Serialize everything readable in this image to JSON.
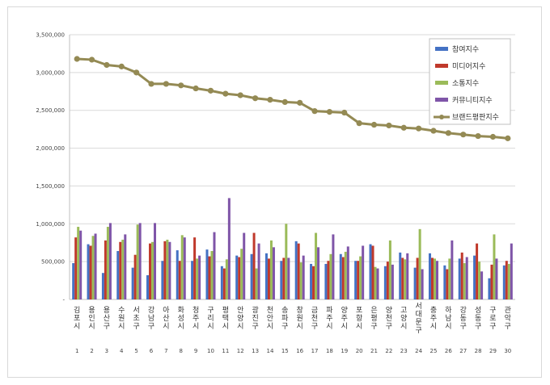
{
  "chart_data": {
    "type": "bar",
    "categories": [
      "김포시",
      "용인시",
      "용산구",
      "수원시",
      "서초구",
      "강남구",
      "아산시",
      "화성시",
      "청주시",
      "구리시",
      "평택시",
      "안양시",
      "광진구",
      "천안시",
      "송파구",
      "창원시",
      "금천구",
      "파주시",
      "양주시",
      "포항시",
      "은평구",
      "양천구",
      "고양시",
      "서대문구",
      "충주시",
      "하남시",
      "강동구",
      "성동구",
      "구로구",
      "관악구"
    ],
    "ranks": [
      "1",
      "2",
      "3",
      "4",
      "5",
      "6",
      "7",
      "8",
      "9",
      "10",
      "11",
      "12",
      "13",
      "14",
      "15",
      "16",
      "17",
      "18",
      "19",
      "20",
      "21",
      "22",
      "23",
      "24",
      "25",
      "26",
      "27",
      "28",
      "29",
      "30"
    ],
    "series": [
      {
        "name": "참여지수",
        "color": "#4472C4",
        "values": [
          480000,
          730000,
          350000,
          640000,
          420000,
          320000,
          510000,
          650000,
          510000,
          660000,
          440000,
          580000,
          600000,
          610000,
          510000,
          770000,
          470000,
          470000,
          600000,
          510000,
          730000,
          440000,
          620000,
          420000,
          610000,
          450000,
          540000,
          580000,
          280000,
          450000
        ]
      },
      {
        "name": "미디어지수",
        "color": "#C0392B",
        "values": [
          820000,
          710000,
          780000,
          760000,
          590000,
          740000,
          770000,
          510000,
          820000,
          570000,
          410000,
          560000,
          880000,
          540000,
          550000,
          740000,
          440000,
          510000,
          560000,
          510000,
          710000,
          500000,
          550000,
          550000,
          550000,
          400000,
          620000,
          740000,
          460000,
          510000
        ]
      },
      {
        "name": "소통지수",
        "color": "#9BBB59",
        "values": [
          960000,
          840000,
          960000,
          790000,
          990000,
          760000,
          790000,
          850000,
          540000,
          640000,
          530000,
          670000,
          410000,
          780000,
          1000000,
          490000,
          880000,
          600000,
          630000,
          570000,
          430000,
          780000,
          530000,
          930000,
          540000,
          540000,
          480000,
          500000,
          860000,
          470000
        ]
      },
      {
        "name": "커뮤니티지수",
        "color": "#7F55A8",
        "values": [
          910000,
          870000,
          1010000,
          860000,
          1010000,
          1010000,
          760000,
          820000,
          580000,
          890000,
          1340000,
          880000,
          740000,
          690000,
          550000,
          580000,
          690000,
          860000,
          700000,
          710000,
          410000,
          460000,
          610000,
          400000,
          510000,
          780000,
          560000,
          370000,
          540000,
          740000
        ]
      }
    ],
    "line": {
      "name": "브랜드평판지수",
      "color": "#948A54",
      "values": [
        3180000,
        3170000,
        3100000,
        3080000,
        3000000,
        2850000,
        2850000,
        2830000,
        2790000,
        2760000,
        2720000,
        2700000,
        2660000,
        2640000,
        2610000,
        2600000,
        2490000,
        2480000,
        2470000,
        2330000,
        2310000,
        2300000,
        2270000,
        2260000,
        2230000,
        2200000,
        2180000,
        2160000,
        2150000,
        2130000
      ]
    },
    "y_ticks": [
      "-",
      "500,000",
      "1,000,000",
      "1,500,000",
      "2,000,000",
      "2,500,000",
      "3,000,000",
      "3,500,000"
    ],
    "ylim": [
      0,
      3500000
    ],
    "grid": true,
    "legend_position": "top-right"
  }
}
